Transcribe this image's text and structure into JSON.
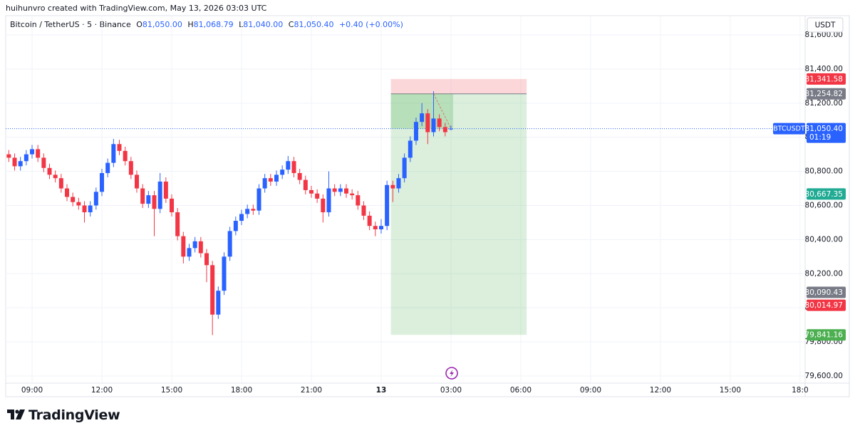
{
  "header": {
    "attribution": "huihunvro created with TradingView.com, May 13, 2026 03:03 UTC",
    "symbol": "Bitcoin / TetherUS · 5 · Binance",
    "ohlc": [
      {
        "key": "O",
        "value": "81,050.00"
      },
      {
        "key": "H",
        "value": "81,068.79"
      },
      {
        "key": "L",
        "value": "81,040.00"
      },
      {
        "key": "C",
        "value": "81,050.40"
      }
    ],
    "change": "+0.40 (+0.00%)",
    "currency": "USDT"
  },
  "chart_data": {
    "type": "candlestick",
    "x": [
      480,
      495,
      510,
      525,
      540,
      555,
      570,
      585,
      600,
      615,
      630,
      645,
      660,
      675,
      690,
      705,
      720,
      735,
      750,
      765,
      780,
      795,
      810,
      825,
      840,
      855,
      870,
      885,
      900,
      915,
      930,
      945,
      960,
      975,
      990,
      1005,
      1020,
      1035,
      1050,
      1065,
      1080,
      1095,
      1110,
      1125,
      1140,
      1155,
      1170,
      1185,
      1200,
      1215,
      1230,
      1245,
      1260,
      1275,
      1290,
      1305,
      1320,
      1335,
      1350,
      1365,
      1380,
      1395,
      1410,
      1425,
      1440,
      1455,
      1470,
      1485,
      1500,
      1515,
      1530,
      1545,
      1560,
      1575,
      1590,
      1605,
      1620
    ],
    "open": [
      80900,
      80880,
      80830,
      80860,
      80900,
      80930,
      80880,
      80820,
      80780,
      80760,
      80700,
      80650,
      80620,
      80600,
      80560,
      80600,
      80680,
      80790,
      80850,
      80960,
      80920,
      80860,
      80780,
      80700,
      80610,
      80660,
      80580,
      80740,
      80640,
      80560,
      80420,
      80300,
      80350,
      80390,
      80320,
      80250,
      79960,
      80100,
      80300,
      80450,
      80510,
      80550,
      80580,
      80570,
      80700,
      80760,
      80740,
      80780,
      80810,
      80860,
      80790,
      80750,
      80690,
      80670,
      80640,
      80560,
      80700,
      80680,
      80700,
      80670,
      80660,
      80600,
      80540,
      80480,
      80460,
      80480,
      80720,
      80700,
      80760,
      80880,
      80980,
      81090,
      81140,
      81030,
      81110,
      81060,
      81050
    ],
    "high": [
      80925,
      80905,
      80885,
      80925,
      80955,
      80955,
      80905,
      80845,
      80805,
      80785,
      80725,
      80675,
      80645,
      80625,
      80625,
      80705,
      80815,
      80875,
      80990,
      80985,
      80945,
      80885,
      80805,
      80725,
      80685,
      80685,
      80790,
      80765,
      80665,
      80585,
      80445,
      80375,
      80415,
      80415,
      80345,
      80275,
      80125,
      80325,
      80475,
      80535,
      80575,
      80605,
      80605,
      80725,
      80785,
      80785,
      80805,
      80835,
      80890,
      80885,
      80815,
      80775,
      80715,
      80695,
      80665,
      80800,
      80725,
      80725,
      80725,
      80695,
      80685,
      80625,
      80565,
      80505,
      80520,
      80745,
      80745,
      80785,
      80905,
      81005,
      81115,
      81200,
      81165,
      81270,
      81135,
      81085,
      81068.79
    ],
    "low": [
      80855,
      80805,
      80805,
      80835,
      80875,
      80855,
      80795,
      80755,
      80735,
      80675,
      80625,
      80595,
      80575,
      80500,
      80535,
      80575,
      80655,
      80765,
      80825,
      80895,
      80835,
      80755,
      80675,
      80585,
      80585,
      80420,
      80555,
      80615,
      80535,
      80395,
      80260,
      80275,
      80325,
      80295,
      80150,
      79840,
      79935,
      80075,
      80275,
      80425,
      80485,
      80525,
      80545,
      80545,
      80675,
      80715,
      80715,
      80755,
      80785,
      80765,
      80725,
      80665,
      80645,
      80615,
      80500,
      80535,
      80655,
      80655,
      80645,
      80635,
      80575,
      80515,
      80455,
      80420,
      80435,
      80455,
      80620,
      80675,
      80735,
      80855,
      80955,
      81065,
      80960,
      81005,
      81035,
      81005,
      81040
    ],
    "close": [
      80880,
      80830,
      80860,
      80900,
      80930,
      80880,
      80820,
      80780,
      80760,
      80700,
      80650,
      80620,
      80600,
      80560,
      80600,
      80680,
      80790,
      80850,
      80960,
      80920,
      80860,
      80780,
      80700,
      80610,
      80660,
      80580,
      80740,
      80640,
      80560,
      80420,
      80300,
      80350,
      80390,
      80320,
      80250,
      79960,
      80100,
      80300,
      80450,
      80510,
      80550,
      80580,
      80570,
      80700,
      80760,
      80740,
      80780,
      80810,
      80860,
      80790,
      80750,
      80690,
      80670,
      80640,
      80560,
      80700,
      80680,
      80700,
      80670,
      80660,
      80600,
      80540,
      80480,
      80460,
      80480,
      80720,
      80700,
      80760,
      80880,
      80980,
      81090,
      81140,
      81030,
      81110,
      81060,
      81030,
      81050.4
    ],
    "up_color": "#2962ff",
    "down_color": "#f23645",
    "xlim": [
      472,
      2533
    ],
    "xticks": [
      {
        "value": 540,
        "label": "09:00"
      },
      {
        "value": 720,
        "label": "12:00"
      },
      {
        "value": 900,
        "label": "15:00"
      },
      {
        "value": 1080,
        "label": "18:00"
      },
      {
        "value": 1260,
        "label": "21:00"
      },
      {
        "value": 1440,
        "label": "13"
      },
      {
        "value": 1620,
        "label": "03:00"
      },
      {
        "value": 1800,
        "label": "06:00"
      },
      {
        "value": 1980,
        "label": "09:00"
      },
      {
        "value": 2160,
        "label": "12:00"
      },
      {
        "value": 2340,
        "label": "15:00"
      },
      {
        "value": 2520,
        "label": "18:0"
      }
    ],
    "ylim": [
      79558,
      81713
    ],
    "yticks": [
      {
        "value": 79600,
        "label": "79,600.00"
      },
      {
        "value": 79800,
        "label": "79,800.00"
      },
      {
        "value": 80000,
        "label": "80,000.00"
      },
      {
        "value": 80200,
        "label": "80,200.00"
      },
      {
        "value": 80400,
        "label": "80,400.00"
      },
      {
        "value": 80600,
        "label": "80,600.00"
      },
      {
        "value": 80800,
        "label": "80,800.00"
      },
      {
        "value": 81000,
        "label": "81,000.00"
      },
      {
        "value": 81200,
        "label": "81,200.00"
      },
      {
        "value": 81400,
        "label": "81,400.00"
      },
      {
        "value": 81600,
        "label": "81,600.00"
      }
    ],
    "grid": true,
    "last_price": {
      "value": 81050.4,
      "label": "81,050.40",
      "symbol": "BTCUSDT",
      "countdown": "01:19",
      "color": "#2962ff"
    },
    "price_markers": [
      {
        "value": 81341.58,
        "label": "81,341.58",
        "color": "#f23645"
      },
      {
        "value": 81254.82,
        "label": "81,254.82",
        "color": "#787b86"
      },
      {
        "value": 80667.35,
        "label": "80,667.35",
        "color": "#22ab94"
      },
      {
        "value": 80090.43,
        "label": "80,090.43",
        "color": "#787b86"
      },
      {
        "value": 80014.97,
        "label": "80,014.97",
        "color": "#f23645"
      },
      {
        "value": 79841.16,
        "label": "79,841.16",
        "color": "#4caf50"
      }
    ],
    "position": {
      "x": [
        1465,
        1815
      ],
      "entry": 81254.82,
      "stop": 81341.58,
      "target": 79841.16,
      "stop_color": "#f23645",
      "target_color": "#4caf50"
    }
  },
  "footer": {
    "brand": "TradingView"
  }
}
